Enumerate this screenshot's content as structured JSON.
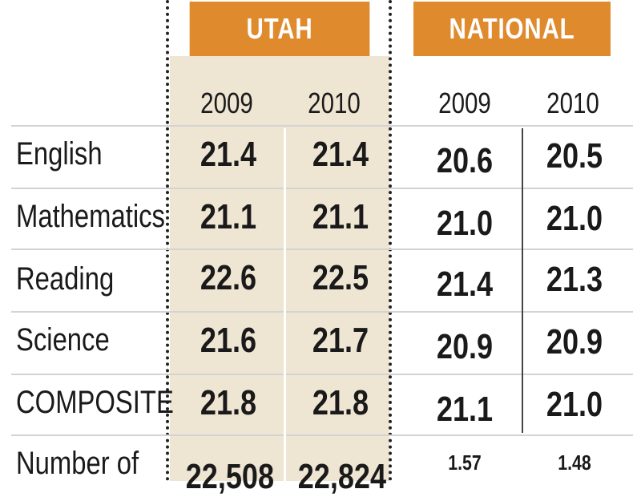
{
  "chart_data": {
    "type": "table",
    "groups": [
      "UTAH",
      "NATIONAL"
    ],
    "years": [
      "2009",
      "2010",
      "2009",
      "2010"
    ],
    "rows": [
      {
        "label": "English",
        "values": [
          "21.4",
          "21.4",
          "20.6",
          "20.5"
        ]
      },
      {
        "label": "Mathematics",
        "values": [
          "21.1",
          "21.1",
          "21.0",
          "21.0"
        ]
      },
      {
        "label": "Reading",
        "values": [
          "22.6",
          "22.5",
          "21.4",
          "21.3"
        ]
      },
      {
        "label": "Science",
        "values": [
          "21.6",
          "21.7",
          "20.9",
          "20.9"
        ]
      },
      {
        "label": "COMPOSITE",
        "values": [
          "21.8",
          "21.8",
          "21.1",
          "21.0"
        ]
      },
      {
        "label": "Number of",
        "values": [
          "22,508",
          "22,824",
          "1.57",
          "1.48"
        ]
      }
    ]
  },
  "colors": {
    "header": "#e08a2e",
    "utah_background": "#efe5d3"
  }
}
